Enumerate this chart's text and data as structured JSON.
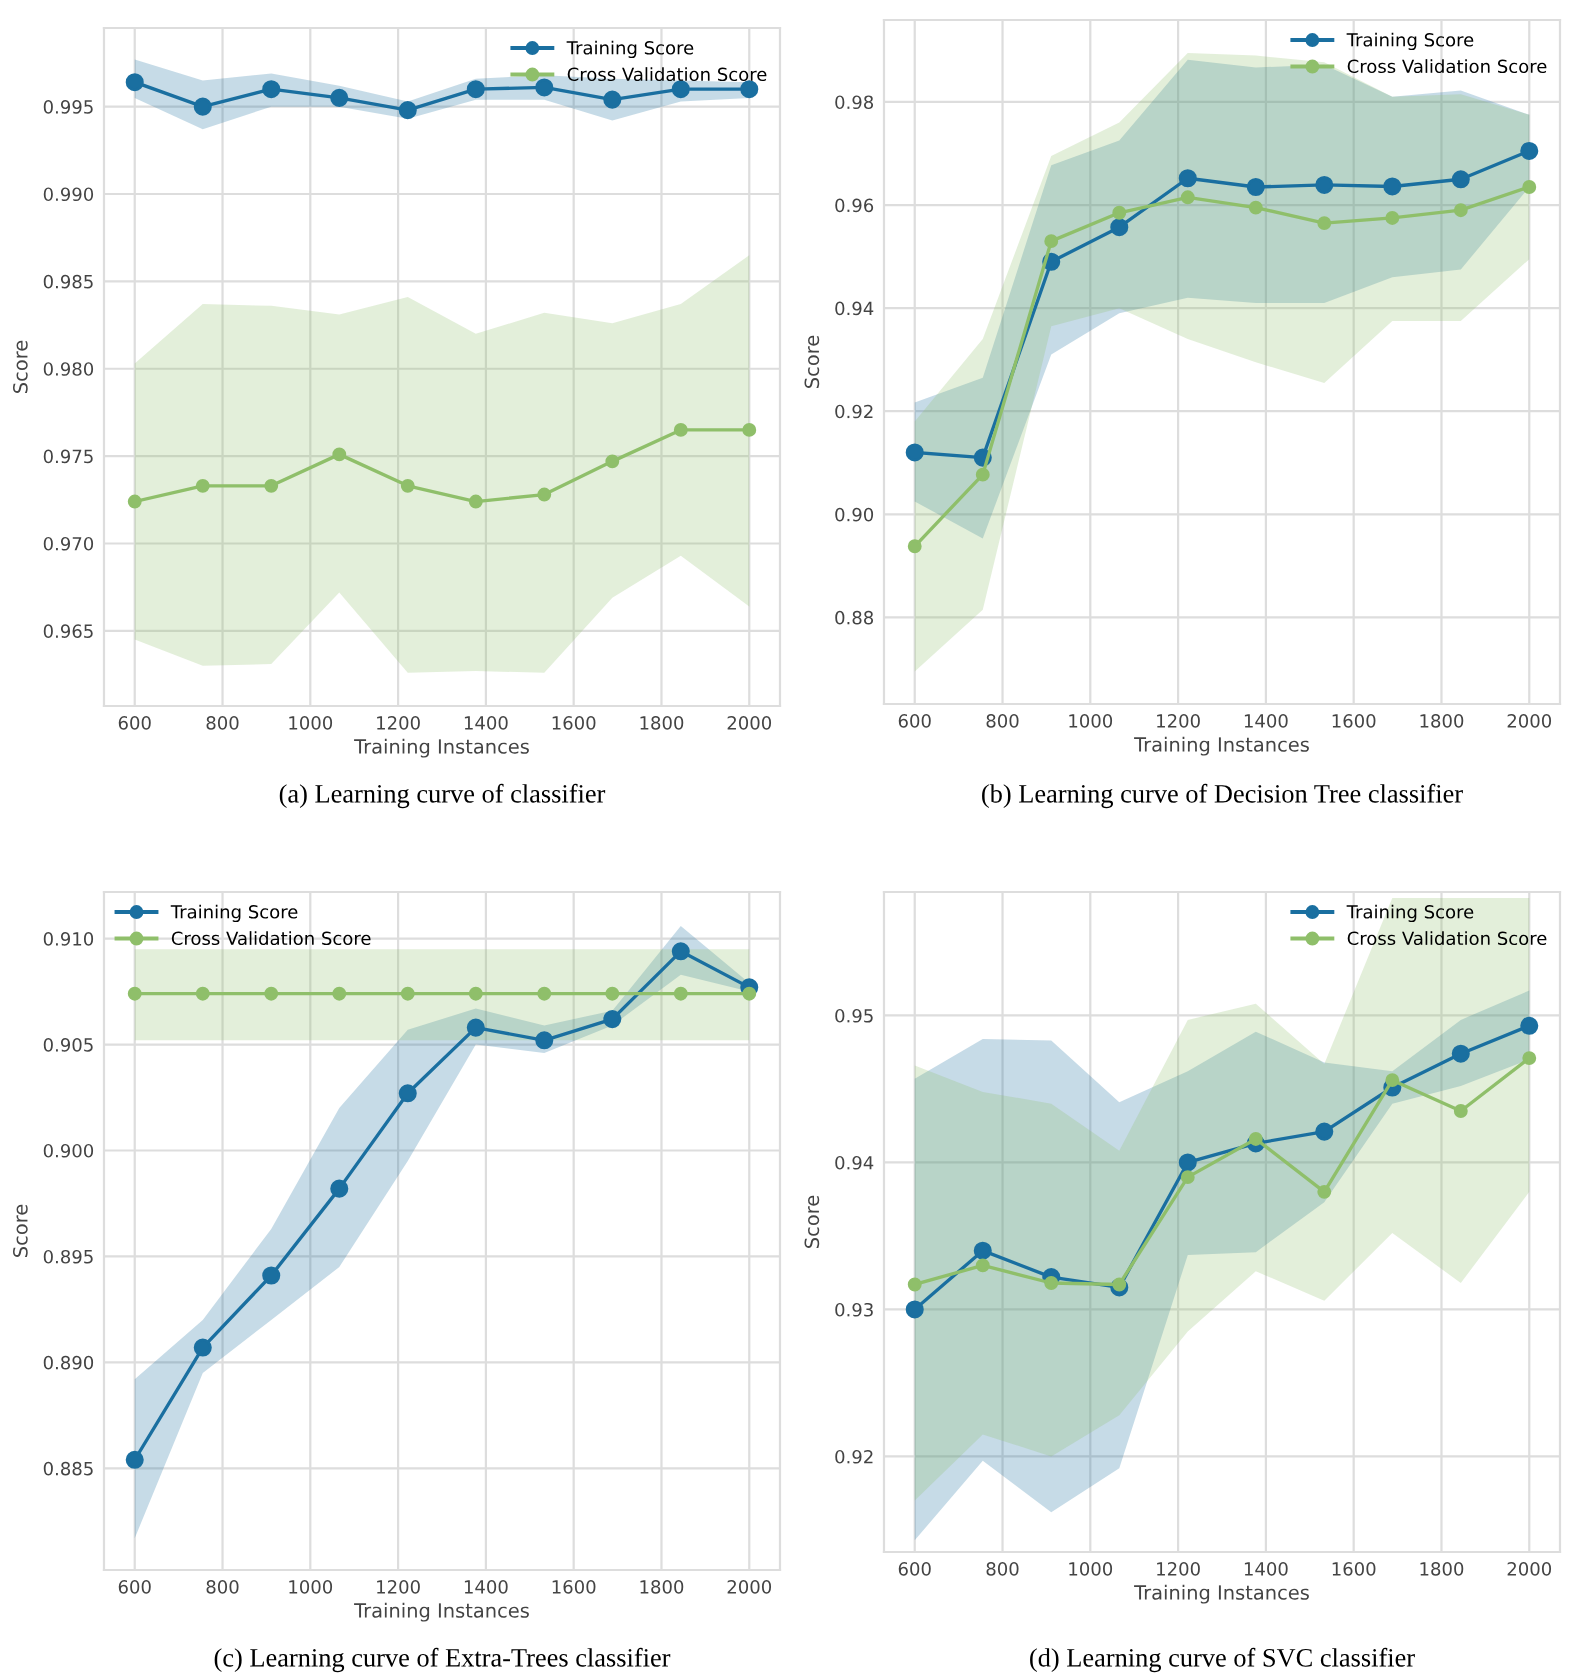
{
  "chart_data": [
    {
      "type": "line",
      "xlabel": "Training Instances",
      "ylabel": "Score",
      "annotations": [
        "(a) Learning curve of classifier"
      ],
      "x": [
        600,
        755,
        911,
        1066,
        1222,
        1377,
        1533,
        1688,
        1844,
        2000
      ],
      "xlim": [
        530,
        2070
      ],
      "xticks": [
        600,
        800,
        1000,
        1200,
        1400,
        1600,
        1800,
        2000
      ],
      "ylim": [
        0.9607,
        0.9995
      ],
      "yticks": [
        0.965,
        {
          "value": 0.97,
          "label": "0.970"
        },
        0.975,
        {
          "value": 0.98,
          "label": "0.980"
        },
        0.985,
        {
          "value": 0.99,
          "label": "0.990"
        },
        0.995
      ],
      "grid": true,
      "legend": "top right",
      "marker": "circle",
      "line_style": "solid",
      "series": [
        {
          "name": "Training Score",
          "color": "#1a6fa0",
          "values": [
            0.9964,
            0.995,
            0.996,
            0.9955,
            0.9948,
            0.996,
            0.9961,
            0.9954,
            0.996,
            0.996
          ],
          "lower": [
            0.9955,
            0.9937,
            0.995,
            0.995,
            0.9943,
            0.9954,
            0.9954,
            0.9942,
            0.9953,
            0.9955
          ],
          "upper": [
            0.9977,
            0.9965,
            0.9969,
            0.9962,
            0.9953,
            0.9966,
            0.9968,
            0.9966,
            0.9965,
            0.9964
          ]
        },
        {
          "name": "Cross Validation Score",
          "color": "#8fbf6a",
          "values": [
            0.9724,
            0.9733,
            0.9733,
            0.9751,
            0.9733,
            0.9724,
            0.9728,
            0.9747,
            0.9765,
            0.9765
          ],
          "lower": [
            0.9645,
            0.963,
            0.9631,
            0.9672,
            0.9626,
            0.9627,
            0.9626,
            0.9669,
            0.9693,
            0.9664
          ],
          "upper": [
            0.9803,
            0.9837,
            0.9836,
            0.9831,
            0.9841,
            0.982,
            0.9832,
            0.9826,
            0.9837,
            0.9865
          ]
        }
      ]
    },
    {
      "type": "line",
      "xlabel": "Training Instances",
      "ylabel": "Score",
      "annotations": [
        "(b) Learning curve of Decision Tree classifier"
      ],
      "x": [
        600,
        755,
        911,
        1066,
        1222,
        1377,
        1533,
        1688,
        1844,
        2000
      ],
      "xlim": [
        530,
        2070
      ],
      "xticks": [
        600,
        800,
        1000,
        1200,
        1400,
        1600,
        1800,
        2000
      ],
      "ylim": [
        0.8632,
        0.9959
      ],
      "yticks": [
        0.88,
        {
          "value": 0.9,
          "label": "0.90"
        },
        0.92,
        0.94,
        0.96,
        0.98
      ],
      "grid": true,
      "legend": "top right",
      "marker": "circle",
      "line_style": "solid",
      "series": [
        {
          "name": "Training Score",
          "color": "#1a6fa0",
          "values": [
            0.912,
            0.911,
            0.949,
            0.9557,
            0.9652,
            0.9635,
            0.9639,
            0.9636,
            0.965,
            0.9705
          ],
          "lower": [
            0.9025,
            0.8953,
            0.931,
            0.939,
            0.942,
            0.941,
            0.941,
            0.946,
            0.9475,
            0.9635
          ],
          "upper": [
            0.9217,
            0.9265,
            0.9677,
            0.9725,
            0.9882,
            0.9867,
            0.9872,
            0.981,
            0.9822,
            0.9775
          ]
        },
        {
          "name": "Cross Validation Score",
          "color": "#8fbf6a",
          "values": [
            0.8938,
            0.9077,
            0.953,
            0.9585,
            0.9615,
            0.9595,
            0.9565,
            0.9575,
            0.959,
            0.9635
          ],
          "lower": [
            0.8695,
            0.8815,
            0.9365,
            0.94,
            0.934,
            0.9295,
            0.9255,
            0.9375,
            0.9375,
            0.9495
          ],
          "upper": [
            0.918,
            0.934,
            0.9695,
            0.976,
            0.9895,
            0.989,
            0.9877,
            0.981,
            0.9815,
            0.9775
          ]
        }
      ]
    },
    {
      "type": "line",
      "xlabel": "Training Instances",
      "ylabel": "Score",
      "annotations": [
        "(c) Learning curve of Extra-Trees classifier"
      ],
      "x": [
        600,
        755,
        911,
        1066,
        1222,
        1377,
        1533,
        1688,
        1844,
        2000
      ],
      "xlim": [
        530,
        2070
      ],
      "xticks": [
        600,
        800,
        1000,
        1200,
        1400,
        1600,
        1800,
        2000
      ],
      "ylim": [
        0.8802,
        0.9122
      ],
      "yticks": [
        0.885,
        {
          "value": 0.89,
          "label": "0.890"
        },
        0.895,
        {
          "value": 0.9,
          "label": "0.900"
        },
        0.905,
        {
          "value": 0.91,
          "label": "0.910"
        }
      ],
      "grid": true,
      "legend": "top left",
      "marker": "circle",
      "line_style": "solid",
      "series": [
        {
          "name": "Training Score",
          "color": "#1a6fa0",
          "values": [
            0.8854,
            0.8907,
            0.8941,
            0.8982,
            0.9027,
            0.9058,
            0.9052,
            0.9062,
            0.9094,
            0.9077
          ],
          "lower": [
            0.8817,
            0.8895,
            0.892,
            0.8945,
            0.8995,
            0.905,
            0.9046,
            0.9059,
            0.9083,
            0.9075
          ],
          "upper": [
            0.8892,
            0.892,
            0.8963,
            0.902,
            0.9057,
            0.9067,
            0.9059,
            0.9066,
            0.9106,
            0.9079
          ]
        },
        {
          "name": "Cross Validation Score",
          "color": "#8fbf6a",
          "values": [
            0.9074,
            0.9074,
            0.9074,
            0.9074,
            0.9074,
            0.9074,
            0.9074,
            0.9074,
            0.9074,
            0.9074
          ],
          "lower": [
            0.9052,
            0.9052,
            0.9052,
            0.9052,
            0.9052,
            0.9052,
            0.9052,
            0.9052,
            0.9052,
            0.9052
          ],
          "upper": [
            0.9095,
            0.9095,
            0.9095,
            0.9095,
            0.9095,
            0.9095,
            0.9095,
            0.9095,
            0.9095,
            0.9095
          ]
        }
      ]
    },
    {
      "type": "line",
      "xlabel": "Training Instances",
      "ylabel": "Score",
      "annotations": [
        "(d) Learning curve of SVC classifier"
      ],
      "x": [
        600,
        755,
        911,
        1066,
        1222,
        1377,
        1533,
        1688,
        1844,
        2000
      ],
      "xlim": [
        530,
        2070
      ],
      "xticks": [
        600,
        800,
        1000,
        1200,
        1400,
        1600,
        1800,
        2000
      ],
      "ylim": [
        0.9135,
        0.9584
      ],
      "yticks": [
        0.92,
        0.93,
        0.94,
        0.95
      ],
      "grid": true,
      "legend": "top right",
      "marker": "circle",
      "line_style": "solid",
      "series": [
        {
          "name": "Training Score",
          "color": "#1a6fa0",
          "values": [
            0.93,
            0.934,
            0.9322,
            0.9315,
            0.94,
            0.9413,
            0.9421,
            0.9451,
            0.9474,
            0.9493
          ],
          "lower": [
            0.9143,
            0.9197,
            0.9162,
            0.9192,
            0.9337,
            0.9339,
            0.9373,
            0.944,
            0.9452,
            0.947
          ],
          "upper": [
            0.9457,
            0.9484,
            0.9483,
            0.9441,
            0.9462,
            0.9489,
            0.9468,
            0.9462,
            0.9497,
            0.9517
          ]
        },
        {
          "name": "Cross Validation Score",
          "color": "#8fbf6a",
          "values": [
            0.9317,
            0.933,
            0.9318,
            0.9317,
            0.939,
            0.9416,
            0.938,
            0.9456,
            0.9435,
            0.9471
          ],
          "lower": [
            0.917,
            0.9215,
            0.92,
            0.9228,
            0.9285,
            0.9326,
            0.9306,
            0.9352,
            0.9318,
            0.938
          ],
          "upper": [
            0.9466,
            0.9448,
            0.944,
            0.9408,
            0.9497,
            0.9508,
            0.9467,
            0.958,
            0.958,
            0.958
          ]
        }
      ]
    }
  ]
}
